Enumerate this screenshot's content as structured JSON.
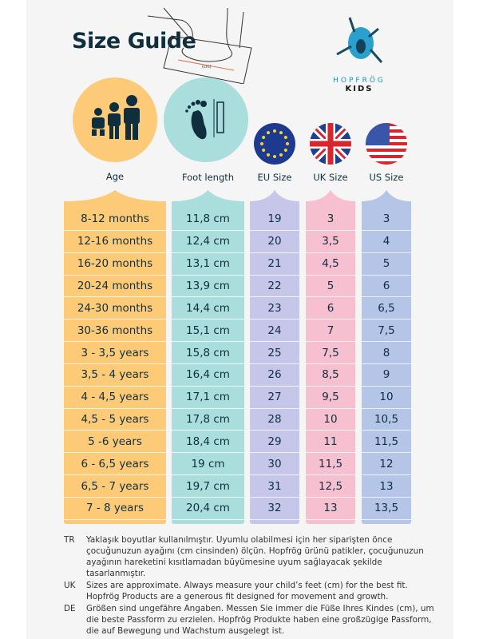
{
  "title": "Size Guide",
  "illustration_label": "(cm)",
  "brand": {
    "name": "HOPFRÖG",
    "sub": "KIDS"
  },
  "colors": {
    "age": "#fdcb78",
    "foot": "#a9dedd",
    "eu": "#c5c6ea",
    "uk": "#f7c0d1",
    "us": "#b4c5e8",
    "text": "#0f2f3e"
  },
  "columns": [
    {
      "key": "age",
      "label": "Age",
      "icon": "children-icon"
    },
    {
      "key": "foot",
      "label": "Foot length",
      "icon": "footprint-ruler-icon"
    },
    {
      "key": "eu",
      "label": "EU Size",
      "icon": "eu-flag-icon"
    },
    {
      "key": "uk",
      "label": "UK Size",
      "icon": "uk-flag-icon"
    },
    {
      "key": "us",
      "label": "US Size",
      "icon": "us-flag-icon"
    }
  ],
  "rows": [
    [
      "8-12 months",
      "11,8 cm",
      "19",
      "3",
      "3"
    ],
    [
      "12-16 months",
      "12,4 cm",
      "20",
      "3,5",
      "4"
    ],
    [
      "16-20 months",
      "13,1 cm",
      "21",
      "4,5",
      "5"
    ],
    [
      "20-24 months",
      "13,9 cm",
      "22",
      "5",
      "6"
    ],
    [
      "24-30 months",
      "14,4 cm",
      "23",
      "6",
      "6,5"
    ],
    [
      "30-36 months",
      "15,1 cm",
      "24",
      "7",
      "7,5"
    ],
    [
      "3 - 3,5 years",
      "15,8 cm",
      "25",
      "7,5",
      "8"
    ],
    [
      "3,5 - 4 years",
      "16,4 cm",
      "26",
      "8,5",
      "9"
    ],
    [
      "4 - 4,5 years",
      "17,1 cm",
      "27",
      "9,5",
      "10"
    ],
    [
      "4,5 - 5 years",
      "17,8 cm",
      "28",
      "10",
      "10,5"
    ],
    [
      "5 -6 years",
      "18,4 cm",
      "29",
      "11",
      "11,5"
    ],
    [
      "6 - 6,5 years",
      "19 cm",
      "30",
      "11,5",
      "12"
    ],
    [
      "6,5 - 7 years",
      "19,7 cm",
      "31",
      "12,5",
      "13"
    ],
    [
      "7 - 8 years",
      "20,4 cm",
      "32",
      "13",
      "13,5"
    ]
  ],
  "notes": [
    {
      "code": "TR",
      "text": "Yaklaşık boyutlar kullanılmıştır. Uyumlu olabilmesi için her siparişten önce çocuğunuzun ayağını (cm cinsinden) ölçün. Hopfrög ürünü patikler, çocuğunuzun ayağının hareketini kısıtlamadan büyümesine uyum sağlayacak şekilde tasarlanmıştır."
    },
    {
      "code": "UK",
      "text": "Sizes are approximate. Always measure your child’s feet (cm) for the best fit. Hopfrög Products are a generous fit designed for movement and growth."
    },
    {
      "code": "DE",
      "text": "Größen sind ungefähre Angaben. Messen Sie immer die Füße Ihres Kindes (cm), um die beste Passform zu erzielen. Hopfrög Produkte haben eine großzügige Passform, die auf Bewegung und Wachstum ausgelegt ist."
    }
  ]
}
